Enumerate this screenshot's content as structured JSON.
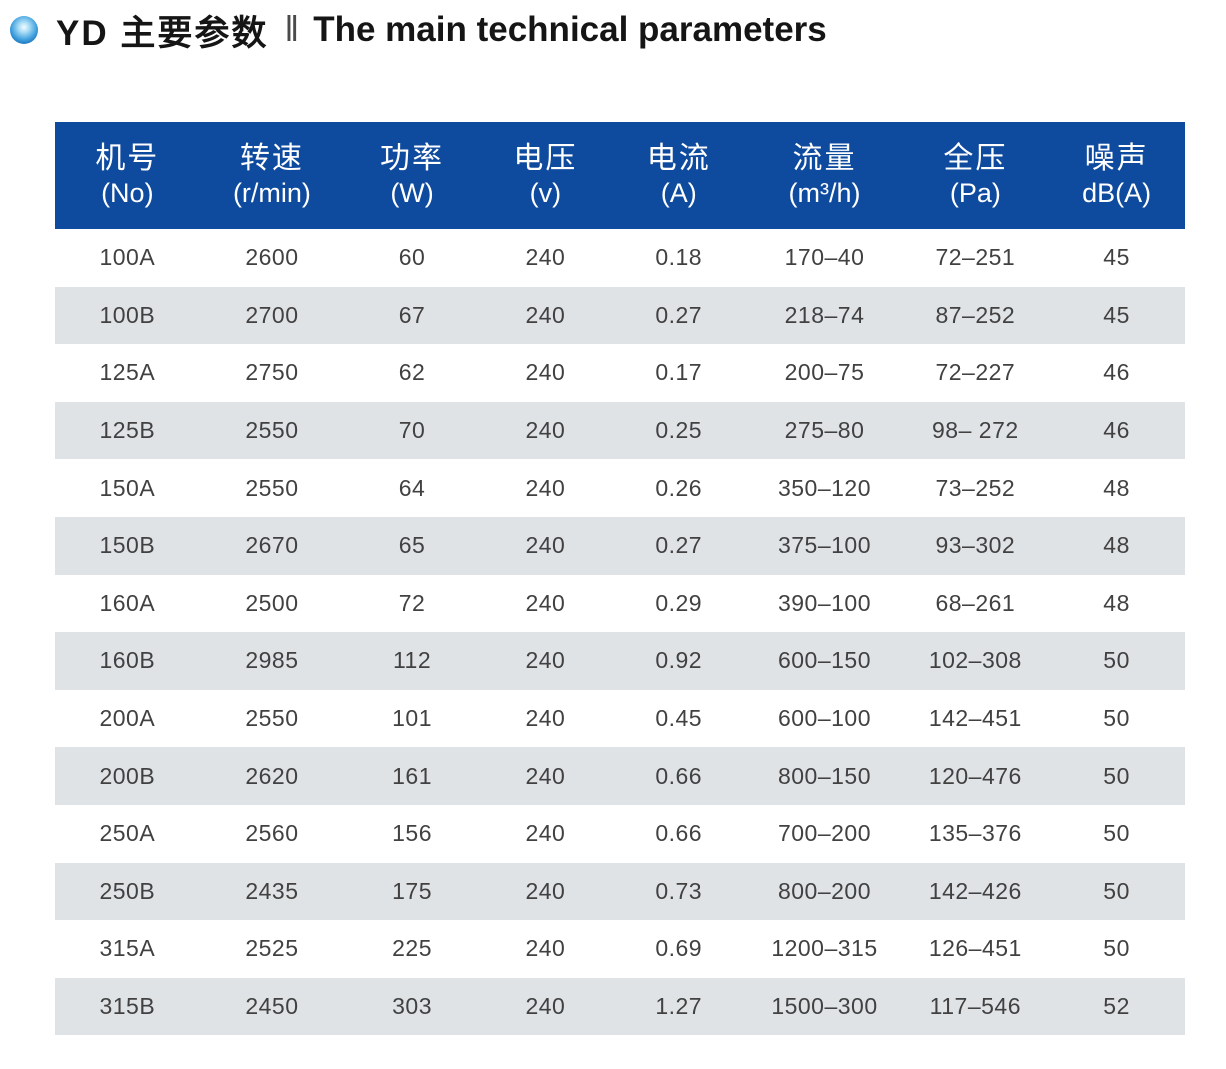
{
  "title": {
    "product": "YD 主要参数",
    "divider": "‖",
    "en": "The main technical parameters"
  },
  "colors": {
    "header_bg": "#0e4a9e",
    "row_alt_bg": "#e0e3e6",
    "data_text": "#414141",
    "title_text": "#151515",
    "header_text": "#ffffff"
  },
  "table": {
    "columns": [
      {
        "zh": "机号",
        "unit": "(No)"
      },
      {
        "zh": "转速",
        "unit": "(r/min)"
      },
      {
        "zh": "功率",
        "unit": "(W)"
      },
      {
        "zh": "电压",
        "unit": "(v)"
      },
      {
        "zh": "电流",
        "unit": "(A)"
      },
      {
        "zh": "流量",
        "unit": "(m³/h)"
      },
      {
        "zh": "全压",
        "unit": "(Pa)"
      },
      {
        "zh": "噪声",
        "unit": "dB(A)"
      }
    ],
    "rows": [
      [
        "100A",
        "2600",
        "60",
        "240",
        "0.18",
        "170–40",
        "72–251",
        "45"
      ],
      [
        "100B",
        "2700",
        "67",
        "240",
        "0.27",
        "218–74",
        "87–252",
        "45"
      ],
      [
        "125A",
        "2750",
        "62",
        "240",
        "0.17",
        "200–75",
        "72–227",
        "46"
      ],
      [
        "125B",
        "2550",
        "70",
        "240",
        "0.25",
        "275–80",
        "98– 272",
        "46"
      ],
      [
        "150A",
        "2550",
        "64",
        "240",
        "0.26",
        "350–120",
        "73–252",
        "48"
      ],
      [
        "150B",
        "2670",
        "65",
        "240",
        "0.27",
        "375–100",
        "93–302",
        "48"
      ],
      [
        "160A",
        "2500",
        "72",
        "240",
        "0.29",
        "390–100",
        "68–261",
        "48"
      ],
      [
        "160B",
        "2985",
        "112",
        "240",
        "0.92",
        "600–150",
        "102–308",
        "50"
      ],
      [
        "200A",
        "2550",
        "101",
        "240",
        "0.45",
        "600–100",
        "142–451",
        "50"
      ],
      [
        "200B",
        "2620",
        "161",
        "240",
        "0.66",
        "800–150",
        "120–476",
        "50"
      ],
      [
        "250A",
        "2560",
        "156",
        "240",
        "0.66",
        "700–200",
        "135–376",
        "50"
      ],
      [
        "250B",
        "2435",
        "175",
        "240",
        "0.73",
        "800–200",
        "142–426",
        "50"
      ],
      [
        "315A",
        "2525",
        "225",
        "240",
        "0.69",
        "1200–315",
        "126–451",
        "50"
      ],
      [
        "315B",
        "2450",
        "303",
        "240",
        "1.27",
        "1500–300",
        "117–546",
        "52"
      ]
    ]
  }
}
